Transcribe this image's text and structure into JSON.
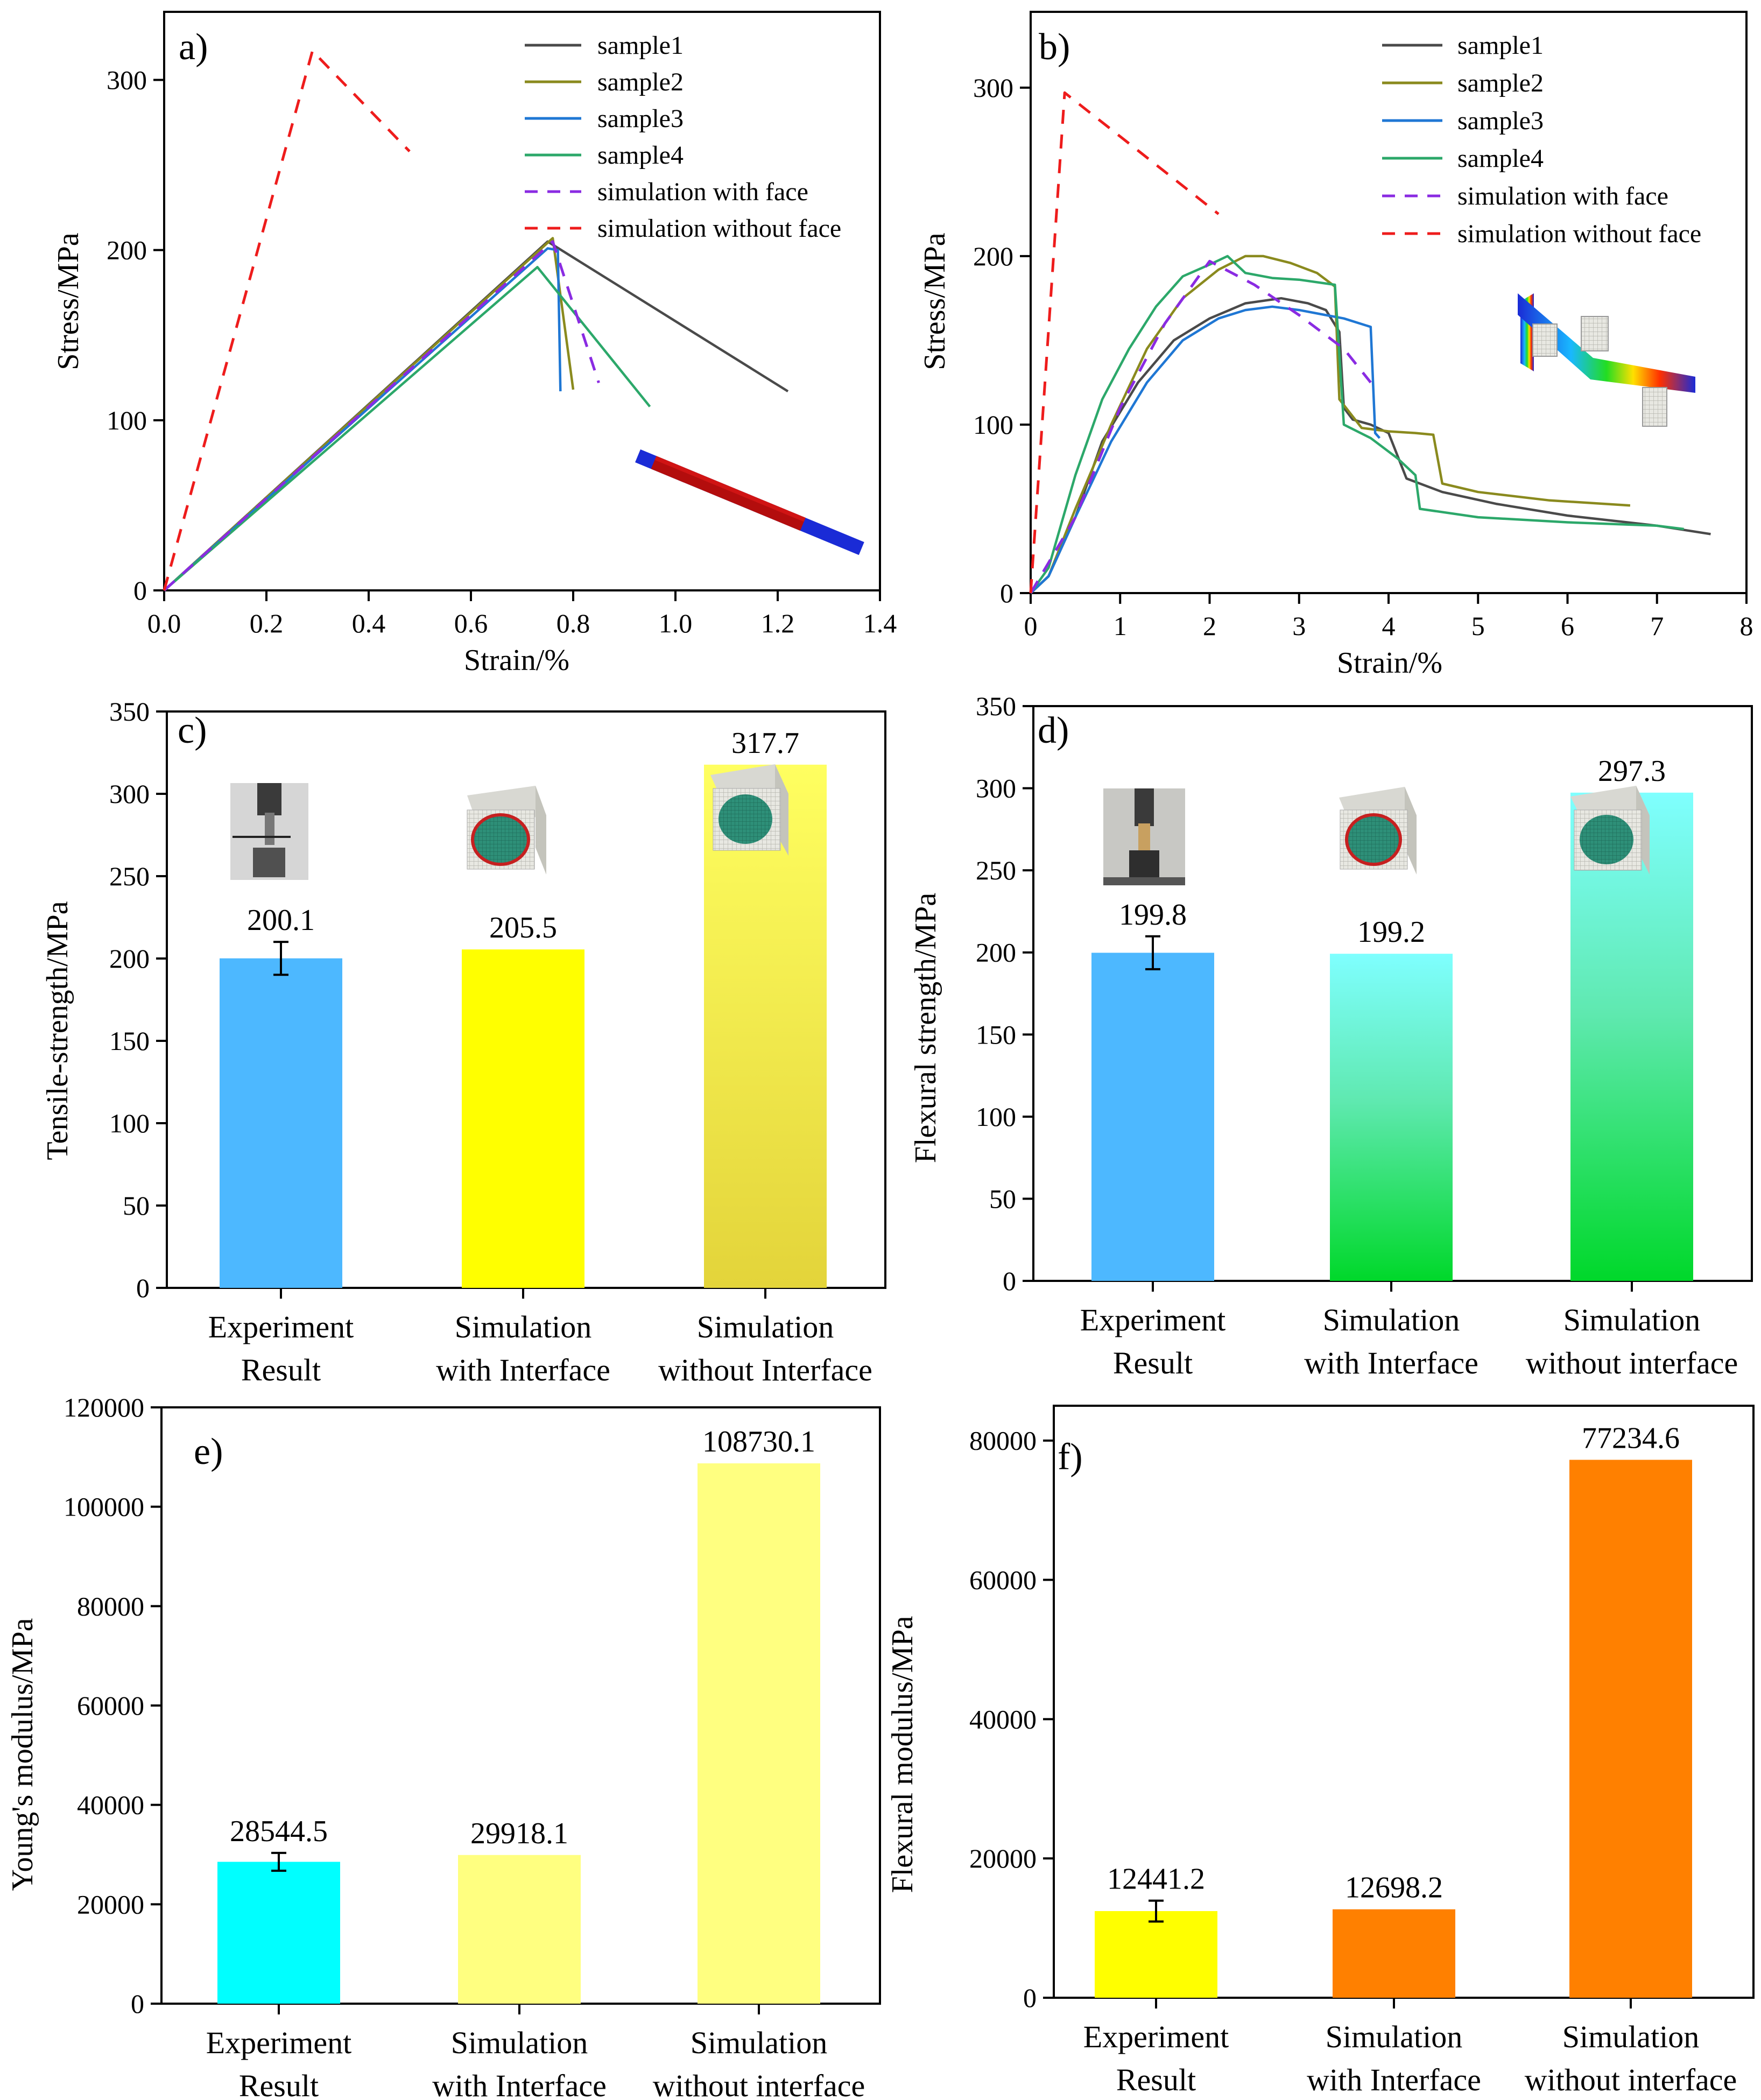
{
  "colors": {
    "sample1": "#4a4a4a",
    "sample2": "#8a8a1e",
    "sample3": "#1f77d4",
    "sample4": "#2ca86a",
    "sim_with": "#8a2be2",
    "sim_without": "#ee1c1c",
    "blue": "#4db8ff",
    "yellow": "#ffff00",
    "yellow_grad_bottom": "#e6d83a",
    "cyan_light": "#74ffff",
    "cyan": "#00ffff",
    "green": "#00dd30",
    "pale_yellow": "#ffff80",
    "orange": "#ff8000"
  },
  "chart_data": [
    {
      "panel": "a)",
      "type": "line",
      "xlabel": "Strain/%",
      "ylabel": "Stress/MPa",
      "xlim": [
        0,
        1.4
      ],
      "ylim": [
        0,
        340
      ],
      "xticks": [
        "0.0",
        "0.2",
        "0.4",
        "0.6",
        "0.8",
        "1.0",
        "1.2",
        "1.4"
      ],
      "yticks": [
        "0",
        "100",
        "200",
        "300"
      ],
      "legend": [
        "sample1",
        "sample2",
        "sample3",
        "sample4",
        "simulation with face",
        "simulation without face"
      ],
      "series": [
        {
          "name": "sample1",
          "color_key": "sample1",
          "dash": false,
          "x": [
            0,
            0.75,
            1.22
          ],
          "y": [
            0,
            205,
            117
          ]
        },
        {
          "name": "sample2",
          "color_key": "sample2",
          "dash": false,
          "x": [
            0,
            0.76,
            0.8
          ],
          "y": [
            0,
            207,
            118
          ]
        },
        {
          "name": "sample3",
          "color_key": "sample3",
          "dash": false,
          "x": [
            0,
            0.75,
            0.77,
            0.775
          ],
          "y": [
            0,
            201,
            200,
            117
          ]
        },
        {
          "name": "sample4",
          "color_key": "sample4",
          "dash": false,
          "x": [
            0,
            0.73,
            0.95
          ],
          "y": [
            0,
            190,
            108
          ]
        },
        {
          "name": "simulation with face",
          "color_key": "sim_with",
          "dash": true,
          "x": [
            0,
            0.76,
            0.85
          ],
          "y": [
            0,
            205,
            122
          ]
        },
        {
          "name": "simulation without face",
          "color_key": "sim_without",
          "dash": true,
          "x": [
            0,
            0.29,
            0.48
          ],
          "y": [
            0,
            317,
            258
          ]
        }
      ]
    },
    {
      "panel": "b)",
      "type": "line",
      "xlabel": "Strain/%",
      "ylabel": "Stress/MPa",
      "xlim": [
        0,
        8
      ],
      "ylim": [
        0,
        345
      ],
      "xticks": [
        "0",
        "1",
        "2",
        "3",
        "4",
        "5",
        "6",
        "7",
        "8"
      ],
      "yticks": [
        "0",
        "100",
        "200",
        "300"
      ],
      "legend": [
        "sample1",
        "sample2",
        "sample3",
        "sample4",
        "simulation with face",
        "simulation without face"
      ],
      "series": [
        {
          "name": "sample1",
          "color_key": "sample1",
          "dash": false,
          "x": [
            0,
            0.2,
            0.5,
            0.8,
            1.2,
            1.6,
            2.0,
            2.4,
            2.8,
            3.1,
            3.3,
            3.45,
            3.5,
            3.6,
            3.8,
            4.0,
            4.2,
            4.6,
            5.2,
            6.0,
            7.0,
            7.6
          ],
          "y": [
            0,
            10,
            45,
            90,
            125,
            150,
            163,
            172,
            175,
            172,
            168,
            155,
            110,
            103,
            100,
            95,
            68,
            60,
            53,
            46,
            40,
            35
          ]
        },
        {
          "name": "sample2",
          "color_key": "sample2",
          "dash": false,
          "x": [
            0,
            0.2,
            0.5,
            0.9,
            1.3,
            1.7,
            2.1,
            2.4,
            2.6,
            2.9,
            3.2,
            3.4,
            3.45,
            3.7,
            4.0,
            4.3,
            4.5,
            4.6,
            5.0,
            5.8,
            6.7
          ],
          "y": [
            0,
            10,
            50,
            100,
            145,
            175,
            192,
            200,
            200,
            196,
            190,
            182,
            115,
            98,
            96,
            95,
            94,
            65,
            60,
            55,
            52
          ]
        },
        {
          "name": "sample3",
          "color_key": "sample3",
          "dash": false,
          "x": [
            0,
            0.2,
            0.5,
            0.9,
            1.3,
            1.7,
            2.1,
            2.4,
            2.7,
            3.0,
            3.3,
            3.5,
            3.8,
            3.85,
            3.9
          ],
          "y": [
            0,
            10,
            45,
            90,
            125,
            150,
            163,
            168,
            170,
            168,
            165,
            163,
            158,
            95,
            92
          ]
        },
        {
          "name": "sample4",
          "color_key": "sample4",
          "dash": false,
          "x": [
            0,
            0.2,
            0.5,
            0.8,
            1.1,
            1.4,
            1.7,
            2.0,
            2.2,
            2.4,
            2.7,
            3.0,
            3.4,
            3.5,
            3.8,
            4.1,
            4.3,
            4.35,
            5.0,
            6.0,
            7.0,
            7.3
          ],
          "y": [
            0,
            15,
            70,
            115,
            145,
            170,
            188,
            195,
            200,
            190,
            187,
            186,
            183,
            100,
            92,
            80,
            70,
            50,
            45,
            42,
            40,
            38
          ]
        },
        {
          "name": "simulation with face",
          "color_key": "sim_with",
          "dash": true,
          "x": [
            0,
            0.5,
            1.0,
            1.5,
            2.0,
            2.5,
            3.0,
            3.5,
            3.8
          ],
          "y": [
            0,
            45,
            110,
            160,
            197,
            183,
            165,
            145,
            125
          ]
        },
        {
          "name": "simulation without face",
          "color_key": "sim_without",
          "dash": true,
          "x": [
            0,
            0.38,
            2.1
          ],
          "y": [
            0,
            297,
            225
          ]
        }
      ]
    },
    {
      "panel": "c)",
      "type": "bar",
      "ylabel": "Tensile-strength/MPa",
      "ylim": [
        0,
        350
      ],
      "yticks": [
        "0",
        "50",
        "100",
        "150",
        "200",
        "250",
        "300",
        "350"
      ],
      "categories": [
        [
          "Experiment",
          "Result"
        ],
        [
          "Simulation",
          "with Interface"
        ],
        [
          "Simulation",
          "without Interface"
        ]
      ],
      "values": [
        200.1,
        205.5,
        317.7
      ],
      "labels": [
        "200.1",
        "205.5",
        "317.7"
      ],
      "error": [
        10,
        null,
        null
      ],
      "fills": [
        "blue",
        "yellow",
        "yellow_grad"
      ]
    },
    {
      "panel": "d)",
      "type": "bar",
      "ylabel": "Flexural strength/MPa",
      "ylim": [
        0,
        350
      ],
      "yticks": [
        "0",
        "50",
        "100",
        "150",
        "200",
        "250",
        "300",
        "350"
      ],
      "categories": [
        [
          "Experiment",
          "Result"
        ],
        [
          "Simulation",
          "with Interface"
        ],
        [
          "Simulation",
          "without interface"
        ]
      ],
      "values": [
        199.8,
        199.2,
        297.3
      ],
      "labels": [
        "199.8",
        "199.2",
        "297.3"
      ],
      "error": [
        10,
        null,
        null
      ],
      "fills": [
        "blue",
        "cyan_green_grad",
        "cyan_green_grad"
      ]
    },
    {
      "panel": "e)",
      "type": "bar",
      "ylabel": "Young's modulus/MPa",
      "ylim": [
        0,
        120000
      ],
      "yticks": [
        "0",
        "20000",
        "40000",
        "60000",
        "80000",
        "100000",
        "120000"
      ],
      "categories": [
        [
          "Experiment",
          "Result"
        ],
        [
          "Simulation",
          "with Interface"
        ],
        [
          "Simulation",
          "without interface"
        ]
      ],
      "values": [
        28544.5,
        29918.1,
        108730.1
      ],
      "labels": [
        "28544.5",
        "29918.1",
        "108730.1"
      ],
      "error": [
        1800,
        null,
        null
      ],
      "fills": [
        "cyan",
        "pale_yellow",
        "pale_yellow"
      ]
    },
    {
      "panel": "f)",
      "type": "bar",
      "ylabel": "Flexural modulus/MPa",
      "ylim": [
        0,
        85000
      ],
      "yticks": [
        "0",
        "20000",
        "40000",
        "60000",
        "80000"
      ],
      "categories": [
        [
          "Experiment",
          "Result"
        ],
        [
          "Simulation",
          "with Interface"
        ],
        [
          "Simulation",
          "without interface"
        ]
      ],
      "values": [
        12441.2,
        12698.2,
        77234.6
      ],
      "labels": [
        "12441.2",
        "12698.2",
        "77234.6"
      ],
      "error": [
        1500,
        null,
        null
      ],
      "fills": [
        "yellow",
        "orange",
        "orange"
      ]
    }
  ]
}
